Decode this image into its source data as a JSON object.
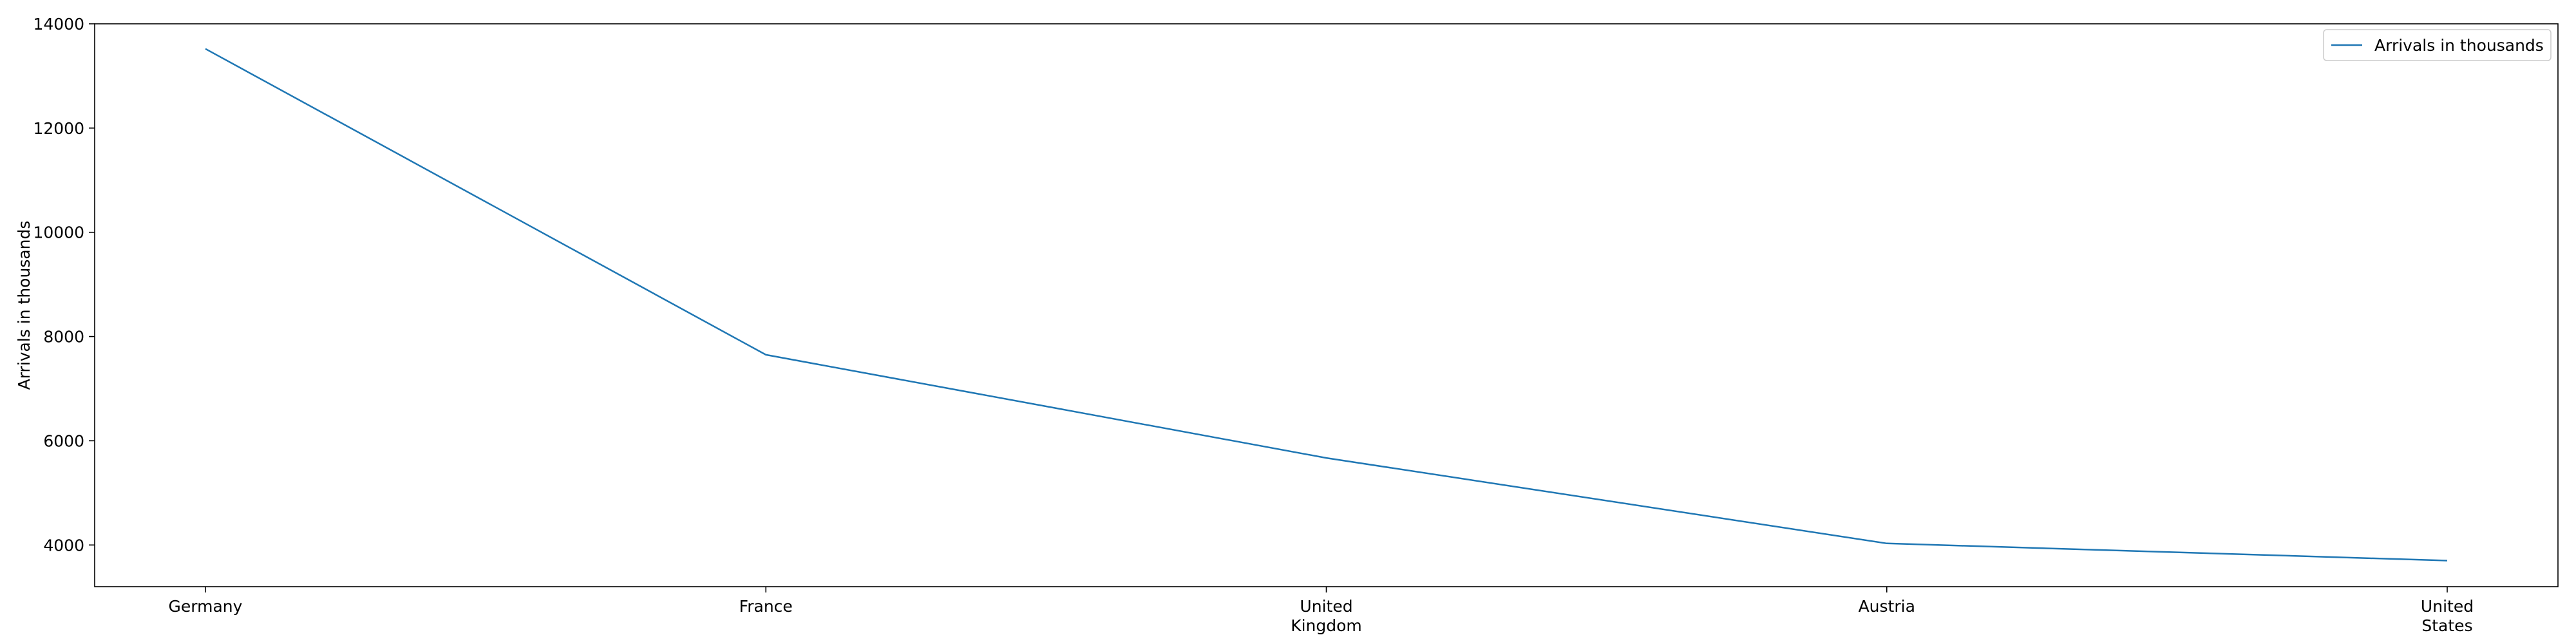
{
  "chart_data": {
    "type": "line",
    "categories": [
      "Germany",
      "France",
      "United Kingdom",
      "Austria",
      "United States"
    ],
    "category_label_lines": [
      [
        "Germany"
      ],
      [
        "France"
      ],
      [
        "United",
        "Kingdom"
      ],
      [
        "Austria"
      ],
      [
        "United",
        "States"
      ]
    ],
    "series": [
      {
        "name": "Arrivals in thousands",
        "values": [
          13520,
          7650,
          5670,
          4030,
          3700
        ],
        "color": "#1f77b4"
      }
    ],
    "xlabel": "",
    "ylabel": "Arrivals in thousands",
    "ylim": [
      3200,
      14000
    ],
    "yticks": [
      4000,
      6000,
      8000,
      10000,
      12000,
      14000
    ],
    "grid": false,
    "legend_position": "top-right"
  }
}
